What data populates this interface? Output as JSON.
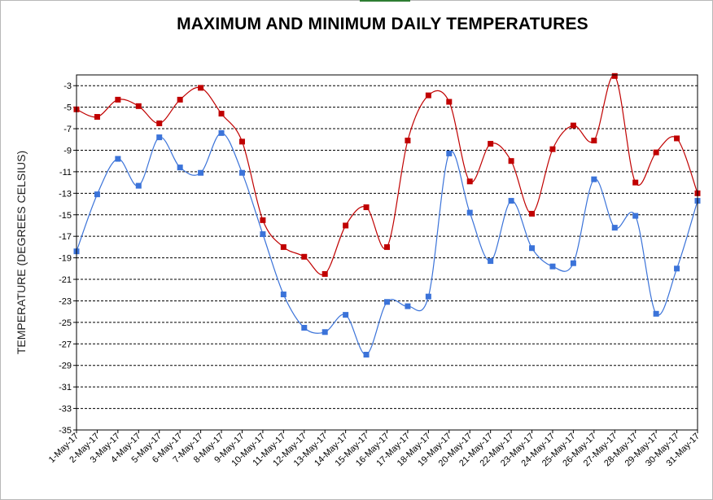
{
  "chart_data": {
    "type": "line",
    "title": "MAXIMUM AND MINIMUM DAILY TEMPERATURES",
    "xlabel": "",
    "ylabel": "TEMPERATURE (DEGREES CELSIUS)",
    "ylim": [
      -35,
      -2
    ],
    "yticks": [
      -3,
      -5,
      -7,
      -9,
      -11,
      -13,
      -15,
      -17,
      -19,
      -21,
      -23,
      -25,
      -27,
      -29,
      -31,
      -33,
      -35
    ],
    "grid": "horizontal dashed",
    "categories": [
      "1-May-17",
      "2-May-17",
      "3-May-17",
      "4-May-17",
      "5-May-17",
      "6-May-17",
      "7-May-17",
      "8-May-17",
      "9-May-17",
      "10-May-17",
      "11-May-17",
      "12-May-17",
      "13-May-17",
      "14-May-17",
      "15-May-17",
      "16-May-17",
      "17-May-17",
      "18-May-17",
      "19-May-17",
      "20-May-17",
      "21-May-17",
      "22-May-17",
      "23-May-17",
      "24-May-17",
      "25-May-17",
      "26-May-17",
      "27-May-17",
      "28-May-17",
      "29-May-17",
      "30-May-17",
      "31-May-17"
    ],
    "series": [
      {
        "color": "#c00000",
        "values": [
          -5.2,
          -5.9,
          -4.3,
          -4.9,
          -6.5,
          -4.3,
          -3.2,
          -5.6,
          -8.2,
          -15.5,
          -18.0,
          -18.9,
          -20.5,
          -16.0,
          -14.3,
          -18.0,
          -8.1,
          -3.9,
          -4.5,
          -11.9,
          -8.4,
          -10.0,
          -14.9,
          -8.9,
          -6.7,
          -8.1,
          -2.1,
          -12.0,
          -9.2,
          -7.9,
          -13.0
        ]
      },
      {
        "color": "#3b73d9",
        "values": [
          -18.4,
          -13.1,
          -9.8,
          -12.3,
          -7.8,
          -10.6,
          -11.1,
          -7.4,
          -11.1,
          -16.8,
          -22.4,
          -25.5,
          -25.9,
          -24.3,
          -28.0,
          -23.1,
          -23.5,
          -22.6,
          -9.3,
          -14.8,
          -19.3,
          -13.7,
          -18.1,
          -19.8,
          -19.5,
          -11.7,
          -16.2,
          -15.1,
          -24.2,
          -20.0,
          -13.7
        ]
      }
    ]
  }
}
